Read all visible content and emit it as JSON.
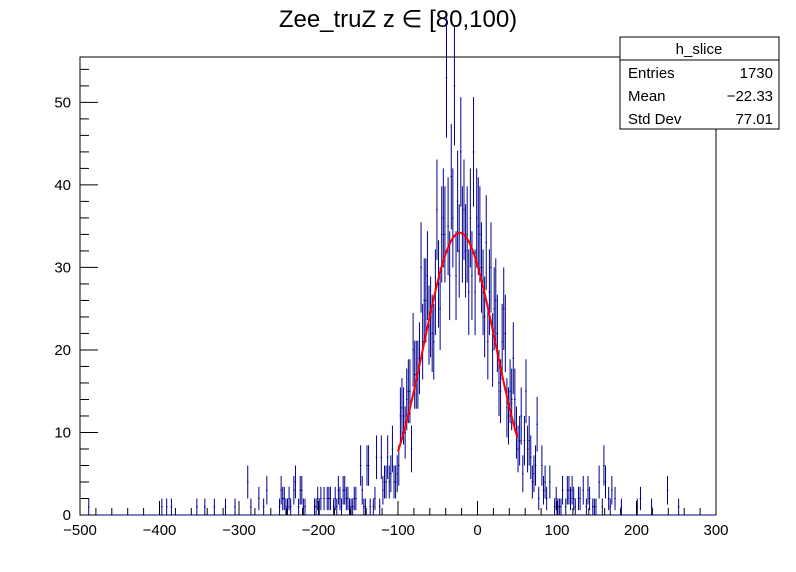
{
  "chart_data": {
    "type": "histogram",
    "title": "Zee_truZ z  ∈ [80,100)",
    "xlabel": "",
    "ylabel": "",
    "xlim": [
      -500,
      300
    ],
    "ylim": [
      0,
      55.5
    ],
    "x_ticks": [
      -500,
      -400,
      -300,
      -200,
      -100,
      0,
      100,
      200,
      300
    ],
    "y_ticks": [
      0,
      10,
      20,
      30,
      40,
      50
    ],
    "grid": false,
    "histogram": {
      "name": "h_slice",
      "color": "#00008b",
      "bin_edges_range": [
        -500,
        300
      ],
      "bin_width": 2,
      "approx_shape": {
        "peak_x": -22,
        "peak_y": 34,
        "max_bin_y": 53,
        "sigma": 45,
        "tail_level_y": 1
      }
    },
    "fit": {
      "type": "gaussian",
      "color": "#ff0000",
      "amplitude": 34.2,
      "mean": -22.3,
      "sigma": 45,
      "x_range": [
        -100,
        50
      ]
    },
    "stats_box": {
      "title": "h_slice",
      "rows": [
        {
          "label": "Entries",
          "value": "1730"
        },
        {
          "label": "Mean",
          "value": "−22.33"
        },
        {
          "label": "Std Dev",
          "value": "77.01"
        }
      ]
    }
  }
}
